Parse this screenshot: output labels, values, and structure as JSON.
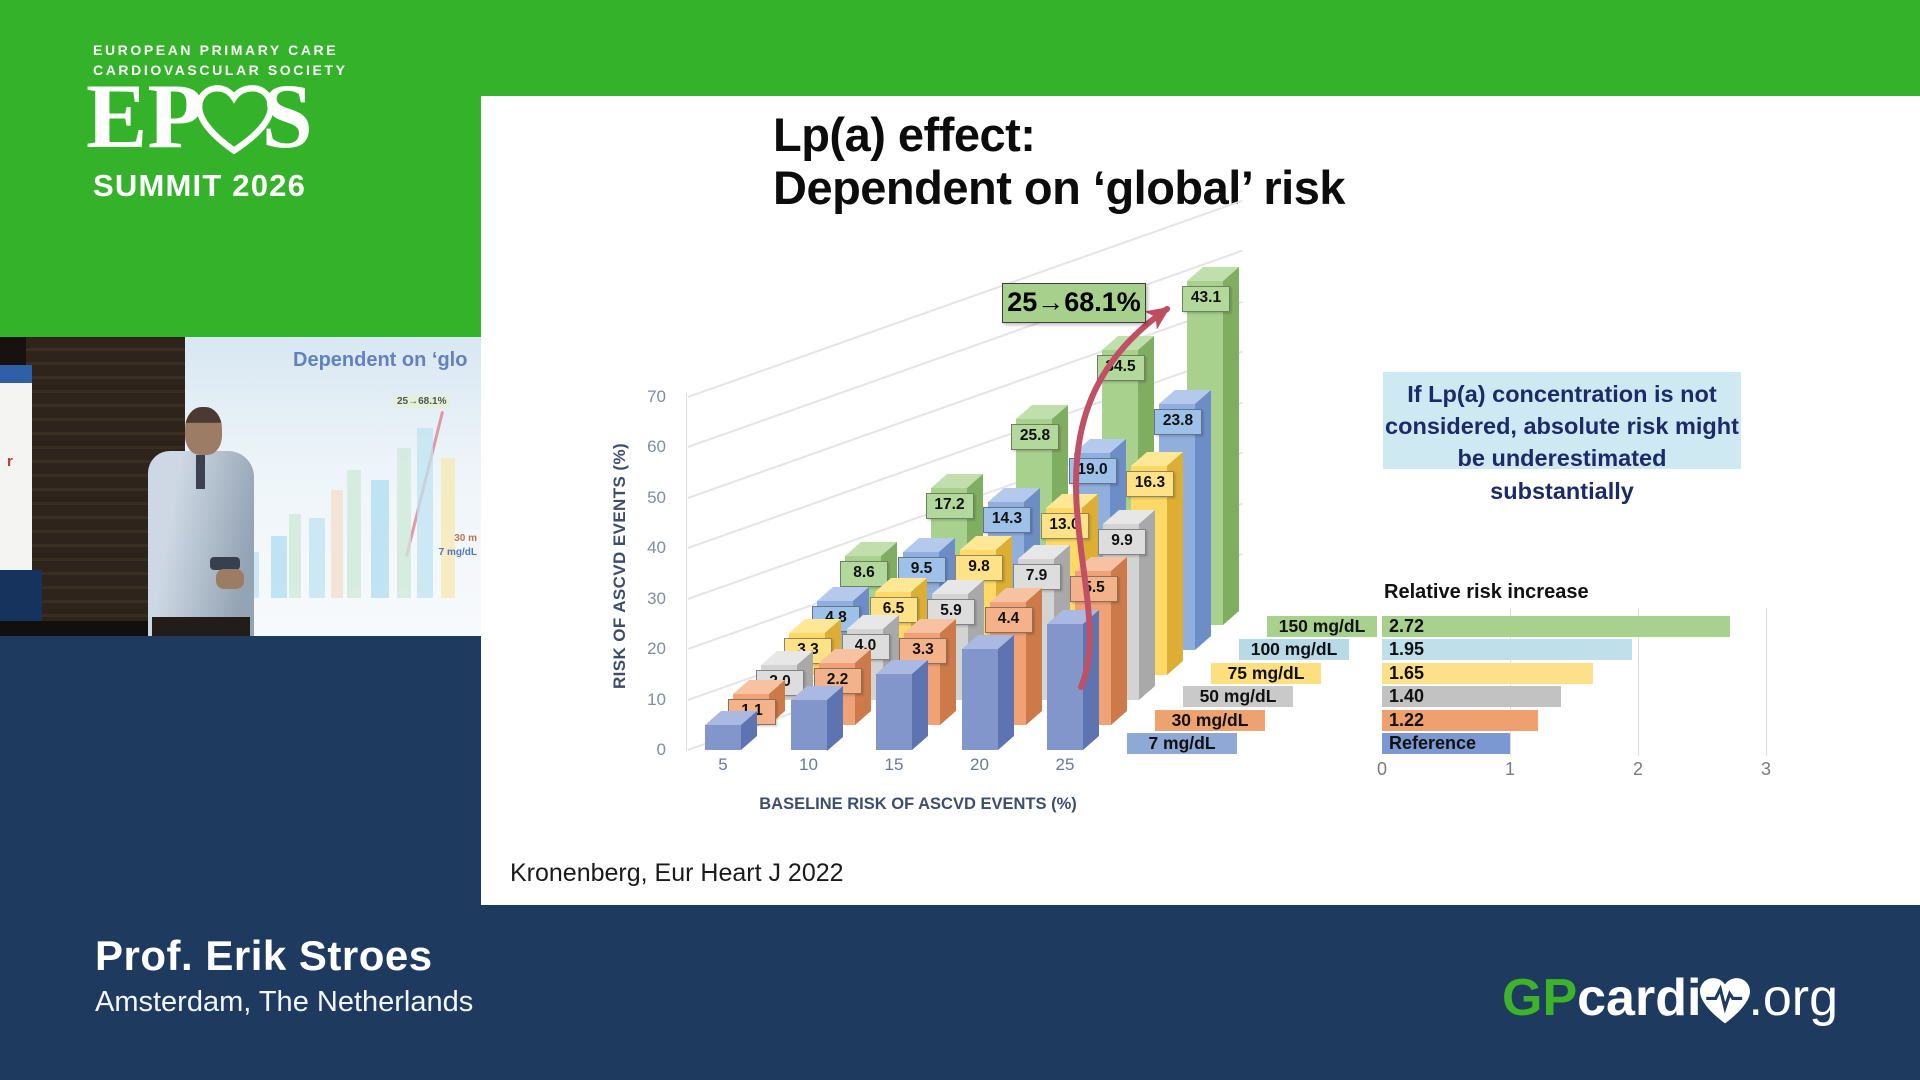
{
  "header": {
    "society_line1": "EUROPEAN PRIMARY CARE",
    "society_line2": "CARDIOVASCULAR SOCIETY",
    "logo_ep": "EP",
    "logo_s": "S",
    "summit": "SUMMIT 2026",
    "green": "#34b32a"
  },
  "slide": {
    "title_lines": [
      "Lp(a) effect:",
      "Dependent on ‘global’ risk"
    ],
    "info_lines": [
      "If Lp(a) concentration is not",
      "considered, absolute risk might",
      "be underestimated substantially"
    ]
  },
  "chart_data": {
    "type": "bar",
    "projection": "3d",
    "title": "Lp(a) effect: Dependent on ‘global’ risk",
    "xlabel": "BASELINE RISK OF ASCVD EVENTS (%)",
    "ylabel": "RISK OF ASCVD EVENTS (%)",
    "yticks": [
      0,
      10,
      20,
      30,
      40,
      50,
      60,
      70
    ],
    "ylim": [
      0,
      70
    ],
    "baselines": [
      5,
      10,
      15,
      20,
      25
    ],
    "annotation": "25→68.1%",
    "citation": "Kronenberg, Eur Heart J 2022",
    "series": [
      {
        "name": "Reference",
        "lpa_level": "7 mg/dL",
        "relative_risk": 1.0,
        "totals": [
          5,
          10,
          15,
          20,
          25
        ],
        "increase_labels": null,
        "face": "#8296cb",
        "top": "#aab9e2",
        "side": "#5e74b0",
        "chip": "#9db3de"
      },
      {
        "name": "30 mg/dL",
        "lpa_level": "30 mg/dL",
        "relative_risk": 1.22,
        "totals": [
          6.1,
          12.2,
          18.3,
          24.4,
          30.5
        ],
        "increase_labels": [
          "1.1",
          "2.2",
          "3.3",
          "4.4",
          "5.5"
        ],
        "face": "#f1a176",
        "top": "#f6c2a1",
        "side": "#cd7a4a",
        "chip": "#f3b289"
      },
      {
        "name": "50 mg/dL",
        "lpa_level": "50 mg/dL",
        "relative_risk": 1.4,
        "totals": [
          7.0,
          14.0,
          20.9,
          27.9,
          34.9
        ],
        "increase_labels": [
          "2.0",
          "4.0",
          "5.9",
          "7.9",
          "9.9"
        ],
        "face": "#d3d3d3",
        "top": "#e7e7e7",
        "side": "#a9a9a9",
        "chip": "#dddddd"
      },
      {
        "name": "75 mg/dL",
        "lpa_level": "75 mg/dL",
        "relative_risk": 1.65,
        "totals": [
          8.3,
          16.5,
          24.8,
          33.0,
          41.3
        ],
        "increase_labels": [
          "3.3",
          "6.5",
          "9.8",
          "13.0",
          "16.3"
        ],
        "face": "#fed966",
        "top": "#fee795",
        "side": "#dcae33",
        "chip": "#fee288"
      },
      {
        "name": "100 mg/dL",
        "lpa_level": "100 mg/dL",
        "relative_risk": 1.95,
        "totals": [
          9.8,
          19.5,
          29.3,
          39.0,
          48.8
        ],
        "increase_labels": [
          "4.8",
          "9.5",
          "14.3",
          "19.0",
          "23.8"
        ],
        "face": "#91afdd",
        "top": "#b4c9eb",
        "side": "#6d8dc7",
        "chip": "#9dc1e8"
      },
      {
        "name": "150 mg/dL",
        "lpa_level": "150 mg/dL",
        "relative_risk": 2.72,
        "totals": [
          13.6,
          27.2,
          40.8,
          54.5,
          68.1
        ],
        "increase_labels": [
          "8.6",
          "17.2",
          "25.8",
          "34.5",
          "43.1"
        ],
        "face": "#a7d18d",
        "top": "#c1dfac",
        "side": "#80ae61",
        "chip": "#b3d89c"
      }
    ],
    "legend": {
      "title": "Relative risk increase",
      "xticks": [
        "0",
        "1",
        "2",
        "3"
      ],
      "xlim": [
        0,
        3
      ],
      "rows": [
        {
          "label": "150 mg/dL",
          "bar_text": "2.72",
          "value": 2.72,
          "bar_color": "#a9d18e",
          "label_color": "#a9d18e"
        },
        {
          "label": "100 mg/dL",
          "bar_text": "1.95",
          "value": 1.95,
          "bar_color": "#bfe0ea",
          "label_color": "#b8d9e6"
        },
        {
          "label": "75 mg/dL",
          "bar_text": "1.65",
          "value": 1.65,
          "bar_color": "#ffe08a",
          "label_color": "#fddf7f"
        },
        {
          "label": "50 mg/dL",
          "bar_text": "1.40",
          "value": 1.4,
          "bar_color": "#c2c2c2",
          "label_color": "#c9c9c9"
        },
        {
          "label": "30 mg/dL",
          "bar_text": "1.22",
          "value": 1.22,
          "bar_color": "#efa06e",
          "label_color": "#eda26f"
        },
        {
          "label": "7 mg/dL",
          "bar_text": "Reference",
          "value": 1.0,
          "bar_color": "#7b98d2",
          "label_color": "#8fa9d6"
        }
      ]
    }
  },
  "video": {
    "screen_title": "Dependent on ‘glo",
    "screen_tag": "25→68.1%",
    "screen_label_30": "30 m",
    "screen_label_7": "7 mg/dL"
  },
  "footer": {
    "name": "Prof. Erik Stroes",
    "location": "Amsterdam, The Netherlands",
    "brand_gp": "GP",
    "brand_cardi": "cardi",
    "brand_org": ".org",
    "navy": "#1e3a5f",
    "brand_green": "#3db32a"
  }
}
